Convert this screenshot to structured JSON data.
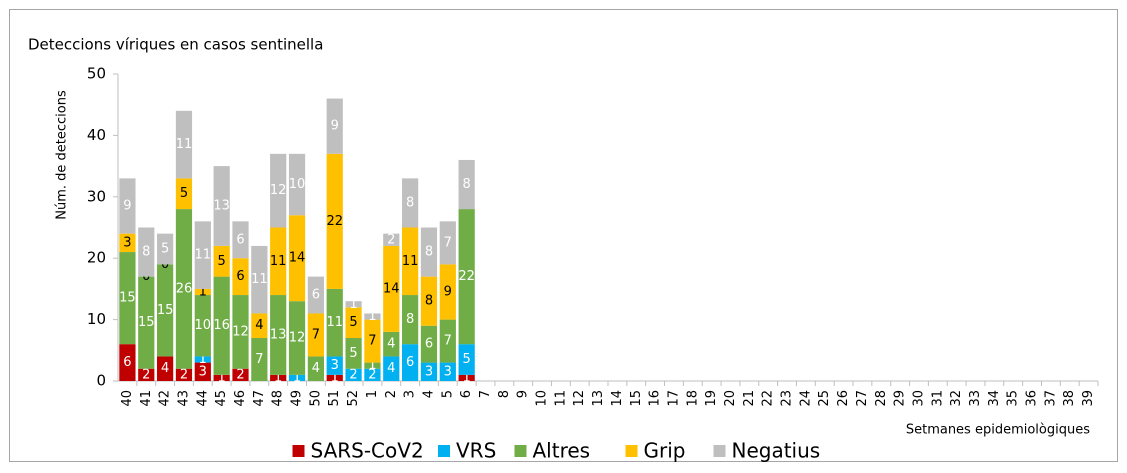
{
  "chart_data": {
    "type": "stacked_bar",
    "title": "Deteccions víriques en casos sentinella",
    "ylabel": "Núm. de deteccions",
    "xlabel": "Setmanes epidemiològiques",
    "categories": [
      "40",
      "41",
      "42",
      "43",
      "44",
      "45",
      "46",
      "47",
      "48",
      "49",
      "50",
      "51",
      "52",
      "1",
      "2",
      "3",
      "4",
      "5",
      "6",
      "7",
      "8",
      "9",
      "10",
      "11",
      "12",
      "13",
      "14",
      "15",
      "16",
      "17",
      "18",
      "19",
      "20",
      "21",
      "22",
      "23",
      "24",
      "25",
      "26",
      "27",
      "28",
      "29",
      "30",
      "31",
      "32",
      "33",
      "34",
      "35",
      "36",
      "37",
      "38",
      "39"
    ],
    "series": [
      {
        "name": "SARS-CoV2",
        "color": "#c00000",
        "label_color": "#ffffff",
        "values": [
          6,
          2,
          4,
          2,
          3,
          1,
          2,
          null,
          1,
          null,
          null,
          1,
          null,
          null,
          null,
          null,
          null,
          null,
          1,
          null,
          null,
          null,
          null,
          null,
          null,
          null,
          null,
          null,
          null,
          null,
          null,
          null,
          null,
          null,
          null,
          null,
          null,
          null,
          null,
          null,
          null,
          null,
          null,
          null,
          null,
          null,
          null,
          null,
          null,
          null,
          null,
          null
        ]
      },
      {
        "name": "VRS",
        "color": "#00b0f0",
        "label_color": "#ffffff",
        "values": [
          null,
          null,
          null,
          null,
          1,
          null,
          null,
          null,
          null,
          1,
          null,
          3,
          2,
          2,
          4,
          6,
          3,
          3,
          5,
          null,
          null,
          null,
          null,
          null,
          null,
          null,
          null,
          null,
          null,
          null,
          null,
          null,
          null,
          null,
          null,
          null,
          null,
          null,
          null,
          null,
          null,
          null,
          null,
          null,
          null,
          null,
          null,
          null,
          null,
          null,
          null,
          null
        ]
      },
      {
        "name": "Altres",
        "color": "#70ad47",
        "label_color": "#ffffff",
        "values": [
          15,
          15,
          15,
          26,
          10,
          16,
          12,
          7,
          13,
          12,
          4,
          11,
          5,
          1,
          4,
          8,
          6,
          7,
          22,
          null,
          null,
          null,
          null,
          null,
          null,
          null,
          null,
          null,
          null,
          null,
          null,
          null,
          null,
          null,
          null,
          null,
          null,
          null,
          null,
          null,
          null,
          null,
          null,
          null,
          null,
          null,
          null,
          null,
          null,
          null,
          null,
          null
        ]
      },
      {
        "name": "Grip",
        "color": "#ffc000",
        "label_color": "#000000",
        "values": [
          3,
          0,
          0,
          5,
          1,
          5,
          6,
          4,
          11,
          14,
          7,
          22,
          5,
          7,
          14,
          11,
          8,
          9,
          null,
          null,
          null,
          null,
          null,
          null,
          null,
          null,
          null,
          null,
          null,
          null,
          null,
          null,
          null,
          null,
          null,
          null,
          null,
          null,
          null,
          null,
          null,
          null,
          null,
          null,
          null,
          null,
          null,
          null,
          null,
          null,
          null,
          null
        ]
      },
      {
        "name": "Negatius",
        "color": "#bfbfbf",
        "label_color": "#ffffff",
        "values": [
          9,
          8,
          5,
          11,
          11,
          13,
          6,
          11,
          12,
          10,
          6,
          9,
          1,
          1,
          2,
          8,
          8,
          7,
          8,
          null,
          null,
          null,
          null,
          null,
          null,
          null,
          null,
          null,
          null,
          null,
          null,
          null,
          null,
          null,
          null,
          null,
          null,
          null,
          null,
          null,
          null,
          null,
          null,
          null,
          null,
          null,
          null,
          null,
          null,
          null,
          null,
          null
        ]
      }
    ],
    "ylim": [
      0,
      50
    ],
    "yticks": [
      0,
      10,
      20,
      30,
      40,
      50
    ],
    "grid": false,
    "legend": "bottom"
  }
}
